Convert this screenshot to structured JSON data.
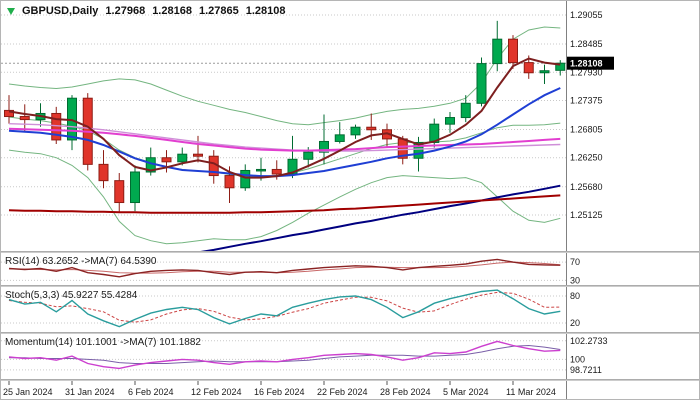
{
  "header": {
    "symbol_period": "GBPUSD,Daily",
    "open": "1.27968",
    "high": "1.28168",
    "low": "1.27865",
    "close": "1.28108"
  },
  "colors": {
    "background": "#ffffff",
    "grid": "#c9c9c9",
    "axis_text": "#1a1a1a",
    "border": "#808080",
    "badge": "#000000",
    "up": "#00a94f",
    "up_stroke": "#006b31",
    "down": "#e0352b",
    "down_stroke": "#8e1d15"
  },
  "chart_data": {
    "type": "candlestick",
    "title": "GBPUSD Daily with MAs, Bollinger-style bands, RSI, Stochastic and Momentum",
    "price_axis": [
      {
        "label": "1.29055",
        "value": 1.29055
      },
      {
        "label": "1.28485",
        "value": 1.28485
      },
      {
        "label": "1.27930",
        "value": 1.2793
      },
      {
        "label": "1.27375",
        "value": 1.27375
      },
      {
        "label": "1.26805",
        "value": 1.26805
      },
      {
        "label": "1.26250",
        "value": 1.2625
      },
      {
        "label": "1.25680",
        "value": 1.2568
      },
      {
        "label": "1.25125",
        "value": 1.25125
      }
    ],
    "current_price": {
      "label": "1.28108",
      "value": 1.28108
    },
    "x_labels": [
      {
        "day": 0,
        "label": "25 Jan 2024"
      },
      {
        "day": 4,
        "label": "31 Jan 2024"
      },
      {
        "day": 8,
        "label": "6 Feb 2024"
      },
      {
        "day": 12,
        "label": "12 Feb 2024"
      },
      {
        "day": 16,
        "label": "16 Feb 2024"
      },
      {
        "day": 20,
        "label": "22 Feb 2024"
      },
      {
        "day": 24,
        "label": "28 Feb 2024"
      },
      {
        "day": 28,
        "label": "5 Mar 2024"
      },
      {
        "day": 32,
        "label": "11 Mar 2024"
      }
    ],
    "candles": [
      [
        "25 Jan",
        1.2718,
        1.2748,
        1.2692,
        1.2706
      ],
      [
        "26 Jan",
        1.2706,
        1.273,
        1.2675,
        1.27
      ],
      [
        "29 Jan",
        1.27,
        1.2732,
        1.2686,
        1.2712
      ],
      [
        "30 Jan",
        1.2712,
        1.2725,
        1.2652,
        1.266
      ],
      [
        "31 Jan",
        1.266,
        1.2748,
        1.264,
        1.2742
      ],
      [
        "1 Feb",
        1.2742,
        1.2752,
        1.26,
        1.2612
      ],
      [
        "2 Feb",
        1.2612,
        1.264,
        1.2565,
        1.258
      ],
      [
        "5 Feb",
        1.258,
        1.2595,
        1.2519,
        1.2537
      ],
      [
        "6 Feb",
        1.2537,
        1.261,
        1.252,
        1.2597
      ],
      [
        "7 Feb",
        1.2597,
        1.2645,
        1.259,
        1.2625
      ],
      [
        "8 Feb",
        1.2625,
        1.264,
        1.2596,
        1.2617
      ],
      [
        "9 Feb",
        1.2617,
        1.2645,
        1.261,
        1.2632
      ],
      [
        "12 Feb",
        1.2632,
        1.2668,
        1.2616,
        1.2628
      ],
      [
        "13 Feb",
        1.2628,
        1.264,
        1.2574,
        1.259
      ],
      [
        "14 Feb",
        1.259,
        1.2608,
        1.2536,
        1.2566
      ],
      [
        "15 Feb",
        1.2566,
        1.2612,
        1.256,
        1.26
      ],
      [
        "16 Feb",
        1.26,
        1.2625,
        1.258,
        1.2602
      ],
      [
        "19 Feb",
        1.2602,
        1.262,
        1.2582,
        1.2593
      ],
      [
        "20 Feb",
        1.2593,
        1.2668,
        1.2585,
        1.2622
      ],
      [
        "21 Feb",
        1.2622,
        1.2646,
        1.2606,
        1.2636
      ],
      [
        "22 Feb",
        1.2636,
        1.271,
        1.2612,
        1.2657
      ],
      [
        "23 Feb",
        1.2657,
        1.2695,
        1.2653,
        1.267
      ],
      [
        "26 Feb",
        1.267,
        1.269,
        1.2662,
        1.2685
      ],
      [
        "27 Feb",
        1.2685,
        1.2712,
        1.266,
        1.268
      ],
      [
        "28 Feb",
        1.268,
        1.2692,
        1.2647,
        1.2662
      ],
      [
        "29 Feb",
        1.2662,
        1.2668,
        1.2612,
        1.2624
      ],
      [
        "1 Mar",
        1.2624,
        1.2666,
        1.2598,
        1.2655
      ],
      [
        "4 Mar",
        1.2655,
        1.2702,
        1.2645,
        1.2691
      ],
      [
        "5 Mar",
        1.2691,
        1.2715,
        1.2674,
        1.2704
      ],
      [
        "6 Mar",
        1.2704,
        1.2748,
        1.2695,
        1.2732
      ],
      [
        "7 Mar",
        1.2732,
        1.2822,
        1.2726,
        1.281
      ],
      [
        "8 Mar",
        1.281,
        1.2894,
        1.2795,
        1.2858
      ],
      [
        "11 Mar",
        1.2858,
        1.2866,
        1.28,
        1.2812
      ],
      [
        "12 Mar",
        1.2812,
        1.2826,
        1.278,
        1.2792
      ],
      [
        "13 Mar",
        1.2792,
        1.2808,
        1.277,
        1.2796
      ],
      [
        "14 Mar",
        1.27968,
        1.28168,
        1.27865,
        1.28108
      ]
    ],
    "overlays": [
      {
        "name": "band-upper",
        "color": "#74b580",
        "width": 1,
        "layer": "below",
        "values": [
          1.277,
          1.2766,
          1.2763,
          1.2761,
          1.2764,
          1.277,
          1.2776,
          1.278,
          1.2778,
          1.277,
          1.2758,
          1.2746,
          1.2736,
          1.2728,
          1.272,
          1.2714,
          1.2706,
          1.2698,
          1.2692,
          1.269,
          1.2694,
          1.2698,
          1.2703,
          1.271,
          1.2716,
          1.272,
          1.2722,
          1.2726,
          1.2732,
          1.2742,
          1.2772,
          1.282,
          1.2858,
          1.2876,
          1.2882,
          1.288
        ]
      },
      {
        "name": "band-middle",
        "color": "#74b580",
        "width": 1,
        "layer": "below",
        "values": [
          1.2705,
          1.2701,
          1.2698,
          1.2693,
          1.2687,
          1.2678,
          1.2662,
          1.264,
          1.2625,
          1.2616,
          1.2607,
          1.2602,
          1.2599,
          1.2597,
          1.2592,
          1.2589,
          1.2588,
          1.259,
          1.2595,
          1.2603,
          1.2613,
          1.2623,
          1.2633,
          1.2643,
          1.2651,
          1.2655,
          1.2655,
          1.2656,
          1.2658,
          1.2664,
          1.2674,
          1.2684,
          1.2689,
          1.2689,
          1.269,
          1.2693
        ]
      },
      {
        "name": "band-lower",
        "color": "#74b580",
        "width": 1,
        "layer": "below",
        "values": [
          1.264,
          1.2636,
          1.2633,
          1.2625,
          1.261,
          1.2586,
          1.2548,
          1.25,
          1.2472,
          1.2462,
          1.2456,
          1.2458,
          1.2462,
          1.2466,
          1.2464,
          1.2464,
          1.247,
          1.2482,
          1.2498,
          1.2516,
          1.2532,
          1.2548,
          1.2563,
          1.2576,
          1.2586,
          1.259,
          1.2588,
          1.2586,
          1.2584,
          1.2586,
          1.2576,
          1.2548,
          1.252,
          1.2502,
          1.2498,
          1.2506
        ]
      },
      {
        "name": "ma-long-navy",
        "color": "#000080",
        "width": 2,
        "layer": "above",
        "values": [
          1.237,
          1.2376,
          1.2381,
          1.2387,
          1.2393,
          1.2399,
          1.2404,
          1.241,
          1.2416,
          1.2421,
          1.2427,
          1.2433,
          1.2439,
          1.2444,
          1.245,
          1.2456,
          1.2461,
          1.2467,
          1.2473,
          1.2478,
          1.2484,
          1.249,
          1.2496,
          1.2501,
          1.2507,
          1.2513,
          1.2518,
          1.2524,
          1.253,
          1.2535,
          1.2541,
          1.2547,
          1.2553,
          1.2558,
          1.2564,
          1.257
        ]
      },
      {
        "name": "ma-long-darkred",
        "color": "#a00000",
        "width": 2,
        "layer": "above",
        "values": [
          1.2522,
          1.2521,
          1.2521,
          1.252,
          1.252,
          1.2519,
          1.2519,
          1.2518,
          1.2518,
          1.2517,
          1.2517,
          1.2517,
          1.2517,
          1.2517,
          1.2517,
          1.2518,
          1.2518,
          1.2519,
          1.252,
          1.2521,
          1.2522,
          1.2524,
          1.2525,
          1.2527,
          1.2529,
          1.2531,
          1.2533,
          1.2535,
          1.2537,
          1.2539,
          1.2541,
          1.2543,
          1.2545,
          1.2547,
          1.2549,
          1.2551
        ]
      },
      {
        "name": "ma-slow-violet",
        "color": "#cf8fd8",
        "width": 1.4,
        "layer": "above",
        "values": [
          1.2692,
          1.2691,
          1.269,
          1.2688,
          1.2686,
          1.2683,
          1.268,
          1.2676,
          1.2672,
          1.2668,
          1.2664,
          1.266,
          1.2656,
          1.2652,
          1.2649,
          1.2646,
          1.2644,
          1.2642,
          1.264,
          1.2639,
          1.2638,
          1.2638,
          1.2638,
          1.2639,
          1.264,
          1.2641,
          1.2642,
          1.2643,
          1.2644,
          1.2645,
          1.2646,
          1.2647,
          1.2648,
          1.2649,
          1.265,
          1.2651
        ]
      },
      {
        "name": "ma-medium-magenta",
        "color": "#e23fd0",
        "width": 2,
        "layer": "above",
        "values": [
          1.2682,
          1.2681,
          1.268,
          1.2679,
          1.2678,
          1.2676,
          1.2674,
          1.2671,
          1.2668,
          1.2664,
          1.266,
          1.2656,
          1.2652,
          1.2649,
          1.2646,
          1.2643,
          1.2641,
          1.264,
          1.2639,
          1.2639,
          1.264,
          1.2641,
          1.2642,
          1.2644,
          1.2646,
          1.2647,
          1.2648,
          1.2649,
          1.265,
          1.2651,
          1.2652,
          1.2654,
          1.2656,
          1.2658,
          1.266,
          1.2662
        ]
      },
      {
        "name": "ma-medium-blue",
        "color": "#1f3fd4",
        "width": 2,
        "layer": "above",
        "values": [
          1.2678,
          1.2676,
          1.2674,
          1.267,
          1.2666,
          1.266,
          1.265,
          1.2637,
          1.2624,
          1.2614,
          1.2607,
          1.2601,
          1.2599,
          1.2597,
          1.2594,
          1.2591,
          1.2589,
          1.2589,
          1.2591,
          1.2595,
          1.2599,
          1.2605,
          1.2611,
          1.2617,
          1.2624,
          1.2629,
          1.2633,
          1.2639,
          1.2647,
          1.2657,
          1.2671,
          1.269,
          1.271,
          1.273,
          1.2748,
          1.2762
        ]
      },
      {
        "name": "ma-fast-darkred",
        "color": "#7d1f1f",
        "width": 2,
        "layer": "above",
        "values": [
          1.2716,
          1.2711,
          1.2707,
          1.2701,
          1.2699,
          1.2686,
          1.2662,
          1.263,
          1.2607,
          1.26,
          1.2606,
          1.2614,
          1.262,
          1.2614,
          1.2597,
          1.2586,
          1.2586,
          1.2589,
          1.2596,
          1.2609,
          1.2623,
          1.2639,
          1.2656,
          1.2669,
          1.2673,
          1.2662,
          1.2651,
          1.2657,
          1.267,
          1.269,
          1.2717,
          1.2763,
          1.2805,
          1.282,
          1.2812,
          1.2808
        ]
      }
    ],
    "indicators": [
      {
        "id": "rsi-svg",
        "name": "RSI",
        "label": "RSI(14) 63.2652 ->MA(7) 64.5390",
        "range": [
          20,
          90
        ],
        "levels": [
          {
            "label": "70",
            "value": 70
          },
          {
            "label": "30",
            "value": 30
          }
        ],
        "series": [
          {
            "name": "rsi-ma",
            "color": "#c86868",
            "width": 1,
            "dash": "",
            "values": [
              55,
              55,
              54,
              53,
              54,
              52,
              50,
              47,
              46,
              46,
              47,
              49,
              50,
              50,
              48,
              48,
              48,
              47,
              48,
              50,
              53,
              55,
              58,
              59,
              59,
              58,
              58,
              58,
              59,
              61,
              64,
              68,
              70,
              69,
              67,
              64.5
            ]
          },
          {
            "name": "rsi",
            "color": "#8b2323",
            "width": 1.4,
            "dash": "",
            "values": [
              56,
              54,
              56,
              50,
              58,
              47,
              43,
              38,
              45,
              50,
              52,
              53,
              52,
              47,
              43,
              48,
              49,
              47,
              52,
              55,
              58,
              60,
              62,
              61,
              58,
              53,
              58,
              61,
              63,
              66,
              72,
              76,
              70,
              65,
              64,
              63.3
            ]
          }
        ]
      },
      {
        "id": "stoch-svg",
        "name": "Stochastic",
        "label": "Stoch(5,3,3) 45.9227 55.4284",
        "range": [
          0,
          100
        ],
        "levels": [
          {
            "label": "80",
            "value": 80
          },
          {
            "label": "20",
            "value": 20
          }
        ],
        "series": [
          {
            "name": "stoch-signal",
            "color": "#cc4444",
            "width": 1,
            "dash": "3,2",
            "values": [
              70,
              66,
              64,
              56,
              58,
              52,
              45,
              26,
              22,
              27,
              40,
              49,
              52,
              46,
              33,
              27,
              29,
              35,
              44,
              52,
              64,
              71,
              77,
              77,
              69,
              53,
              44,
              47,
              61,
              73,
              82,
              88,
              86,
              73,
              55,
              55.4
            ]
          },
          {
            "name": "stoch-main",
            "color": "#2a9d9d",
            "width": 1.4,
            "dash": "",
            "values": [
              72,
              62,
              66,
              45,
              70,
              40,
              25,
              12,
              28,
              42,
              50,
              55,
              50,
              32,
              18,
              30,
              40,
              36,
              55,
              64,
              72,
              78,
              80,
              72,
              55,
              32,
              45,
              64,
              74,
              82,
              90,
              93,
              74,
              52,
              40,
              45.9
            ]
          }
        ]
      },
      {
        "id": "mom-svg",
        "name": "Momentum",
        "label": "Momentum(14) 101.1001 ->MA(7) 101.1882",
        "range": [
          97.6,
          103.1
        ],
        "levels": [
          {
            "label": "102.2733",
            "value": 102.2733
          },
          {
            "label": "100",
            "value": 100
          },
          {
            "label": "98.7211",
            "value": 98.7211
          }
        ],
        "series": [
          {
            "name": "momentum-ma",
            "color": "#7a5fa8",
            "width": 1,
            "dash": "",
            "values": [
              100.2,
              100.2,
              100.1,
              100.1,
              100.1,
              100.0,
              99.9,
              99.6,
              99.5,
              99.5,
              99.5,
              99.6,
              99.7,
              99.8,
              99.7,
              99.7,
              99.7,
              99.7,
              99.8,
              99.9,
              100.1,
              100.3,
              100.4,
              100.5,
              100.5,
              100.5,
              100.4,
              100.4,
              100.5,
              100.6,
              100.9,
              101.3,
              101.6,
              101.7,
              101.5,
              101.2
            ]
          },
          {
            "name": "momentum",
            "color": "#cc3fcf",
            "width": 1.4,
            "dash": "",
            "values": [
              100.3,
              100.1,
              100.2,
              99.9,
              100.4,
              99.5,
              99.1,
              98.9,
              99.3,
              99.6,
              99.8,
              100.0,
              99.9,
              99.6,
              99.4,
              99.7,
              99.8,
              99.7,
              100.0,
              100.2,
              100.5,
              100.6,
              100.7,
              100.6,
              100.3,
              99.9,
              100.2,
              100.8,
              100.7,
              100.9,
              101.6,
              102.2,
              101.7,
              101.3,
              101.0,
              101.1
            ]
          }
        ]
      }
    ]
  }
}
